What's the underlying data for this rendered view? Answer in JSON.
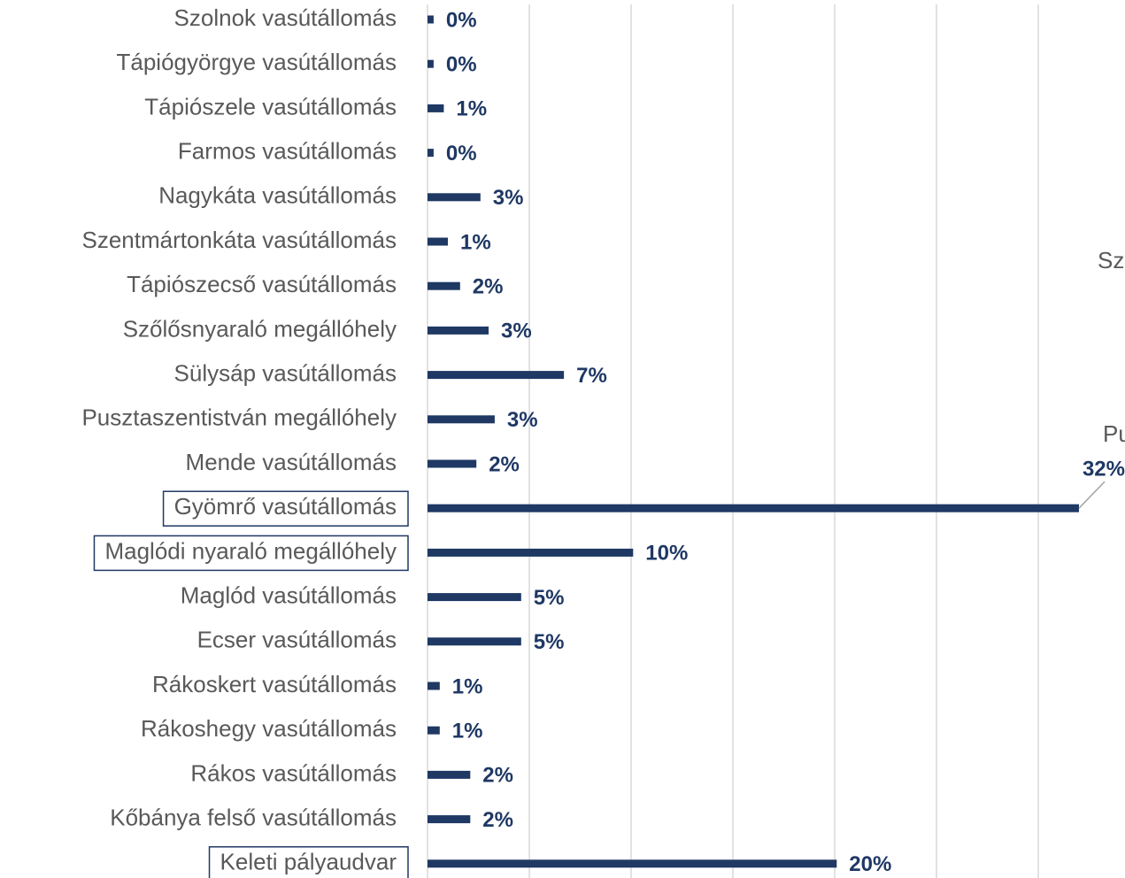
{
  "chart_data": {
    "type": "bar",
    "orientation": "horizontal",
    "color": "#1f3864",
    "categories": [
      "Szolnok vasútállomás",
      "Tápiógyörgye vasútállomás",
      "Tápiószele vasútállomás",
      "Farmos vasútállomás",
      "Nagykáta vasútállomás",
      "Szentmártonkáta vasútállomás",
      "Tápiószecső vasútállomás",
      "Szőlősnyaraló megállóhely",
      "Sülysáp vasútállomás",
      "Pusztaszentistván megállóhely",
      "Mende vasútállomás",
      "Gyömrő vasútállomás",
      "Maglódi nyaraló megállóhely",
      "Maglód vasútállomás",
      "Ecser vasútállomás",
      "Rákoskert vasútállomás",
      "Rákoshegy vasútállomás",
      "Rákos vasútállomás",
      "Kőbánya felső vasútállomás",
      "Keleti pályaudvar"
    ],
    "values": [
      0.3,
      0.3,
      0.8,
      0.3,
      2.6,
      1.0,
      1.6,
      3.0,
      6.7,
      3.3,
      2.4,
      32.0,
      10.1,
      4.6,
      4.6,
      0.6,
      0.6,
      2.1,
      2.1,
      20.1
    ],
    "value_labels": [
      "0%",
      "0%",
      "1%",
      "0%",
      "3%",
      "1%",
      "2%",
      "3%",
      "7%",
      "3%",
      "2%",
      "32%",
      "10%",
      "5%",
      "5%",
      "1%",
      "1%",
      "2%",
      "2%",
      "20%"
    ],
    "boxed_categories": [
      11,
      12,
      19
    ],
    "xlim": [
      0,
      35
    ],
    "xticks": [
      0,
      5,
      10,
      15,
      20,
      25,
      30
    ],
    "grid": true,
    "annotations": [
      "Sz",
      "Pu"
    ]
  }
}
